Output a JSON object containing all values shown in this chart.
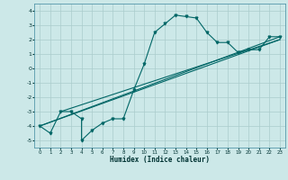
{
  "xlabel": "Humidex (Indice chaleur)",
  "background_color": "#cce8e8",
  "grid_color": "#aacccc",
  "line_color": "#006666",
  "xlim": [
    -0.5,
    23.5
  ],
  "ylim": [
    -5.5,
    4.5
  ],
  "xticks": [
    0,
    1,
    2,
    3,
    4,
    5,
    6,
    7,
    8,
    9,
    10,
    11,
    12,
    13,
    14,
    15,
    16,
    17,
    18,
    19,
    20,
    21,
    22,
    23
  ],
  "yticks": [
    -5,
    -4,
    -3,
    -2,
    -1,
    0,
    1,
    2,
    3,
    4
  ],
  "series": [
    [
      0,
      -4.0
    ],
    [
      1,
      -4.5
    ],
    [
      2,
      -3.0
    ],
    [
      3,
      -3.0
    ],
    [
      4,
      -3.5
    ],
    [
      4,
      -5.0
    ],
    [
      5,
      -4.3
    ],
    [
      6,
      -3.8
    ],
    [
      7,
      -3.5
    ],
    [
      8,
      -3.5
    ],
    [
      9,
      -1.5
    ],
    [
      10,
      0.3
    ],
    [
      11,
      2.5
    ],
    [
      12,
      3.1
    ],
    [
      13,
      3.7
    ],
    [
      14,
      3.6
    ],
    [
      15,
      3.5
    ],
    [
      16,
      2.5
    ],
    [
      17,
      1.8
    ],
    [
      18,
      1.8
    ],
    [
      19,
      1.1
    ],
    [
      20,
      1.3
    ],
    [
      21,
      1.3
    ],
    [
      22,
      2.2
    ],
    [
      23,
      2.2
    ]
  ],
  "line1": [
    [
      0,
      -4.0
    ],
    [
      23,
      2.2
    ]
  ],
  "line2": [
    [
      0,
      -4.0
    ],
    [
      23,
      2.0
    ]
  ],
  "line3": [
    [
      2,
      -3.0
    ],
    [
      23,
      2.0
    ]
  ]
}
